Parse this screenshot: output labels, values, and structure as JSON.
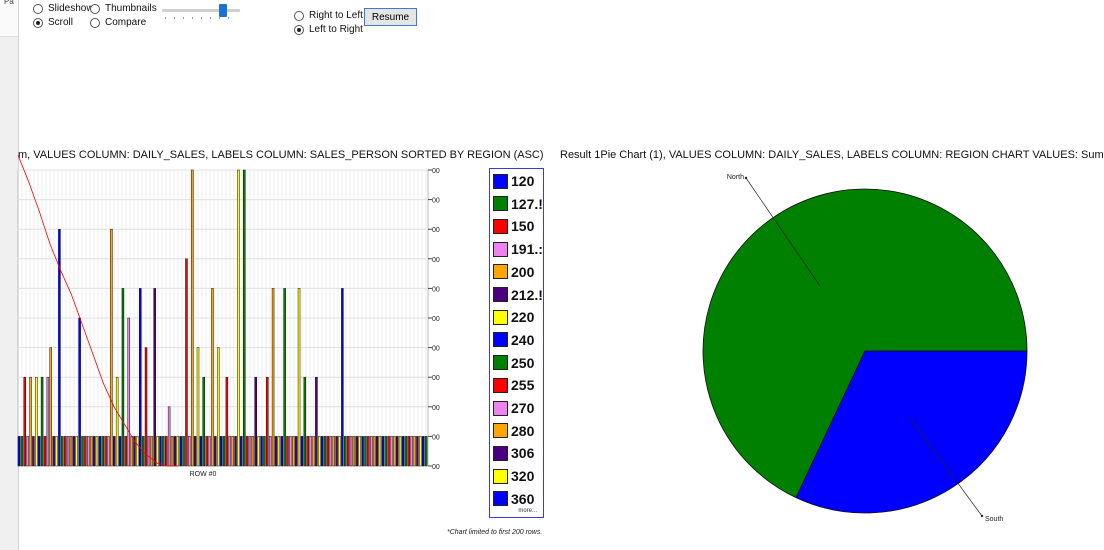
{
  "toolbar": {
    "edge_label": "Pa",
    "slideshow_label": "Slideshow",
    "thumbnails_label": "Thumbnails",
    "scroll_label": "Scroll",
    "compare_label": "Compare",
    "right_to_left_label": "Right to Left",
    "left_to_right_label": "Left to Right",
    "resume_label": "Resume",
    "selected_view": "Scroll",
    "selected_direction": "Left to Right"
  },
  "left_chart_title": "m, VALUES COLUMN: DAILY_SALES, LABELS COLUMN: SALES_PERSON SORTED BY REGION (ASC)",
  "right_chart_title": "Result 1Pie Chart (1), VALUES COLUMN: DAILY_SALES, LABELS COLUMN: REGION CHART VALUES: Sum",
  "legend_more": "more...",
  "footnote": "*Chart limited to first 200 rows.",
  "chart_data": [
    {
      "type": "bar",
      "xlabel": "ROW #0",
      "ylabel": "",
      "y_tick_labels": [
        "00",
        "00",
        "00",
        "00",
        "00",
        "00",
        "00",
        "00",
        "00",
        "00",
        "00"
      ],
      "grid": true,
      "legend_position": "right",
      "legend": [
        {
          "label": "120",
          "color": "#0000ff"
        },
        {
          "label": "127.!",
          "color": "#008000"
        },
        {
          "label": "150",
          "color": "#ff0000"
        },
        {
          "label": "191.:",
          "color": "#ee82ee"
        },
        {
          "label": "200",
          "color": "#ffa500"
        },
        {
          "label": "212.!",
          "color": "#4b0082"
        },
        {
          "label": "220",
          "color": "#ffff00"
        },
        {
          "label": "240",
          "color": "#0000ff"
        },
        {
          "label": "250",
          "color": "#008000"
        },
        {
          "label": "255",
          "color": "#ff0000"
        },
        {
          "label": "270",
          "color": "#ee82ee"
        },
        {
          "label": "280",
          "color": "#ffa500"
        },
        {
          "label": "306",
          "color": "#4b0082"
        },
        {
          "label": "320",
          "color": "#ffff00"
        },
        {
          "label": "360",
          "color": "#0000ff"
        }
      ],
      "palette": [
        "#0000ff",
        "#008000",
        "#ff0000",
        "#ee82ee",
        "#ffa500",
        "#4b0082",
        "#ffff00"
      ],
      "values": [
        1,
        1,
        3,
        1,
        3,
        1,
        3,
        1,
        3,
        1,
        3,
        4,
        1,
        1,
        8,
        1,
        1,
        1,
        1,
        1,
        1,
        5,
        1,
        1,
        1,
        1,
        1,
        1,
        1,
        1,
        1,
        1,
        8,
        1,
        3,
        1,
        6,
        1,
        5,
        1,
        1,
        1,
        6,
        1,
        4,
        1,
        1,
        6,
        1,
        1,
        1,
        1,
        2,
        1,
        1,
        1,
        1,
        1,
        7,
        1,
        10,
        1,
        4,
        1,
        3,
        1,
        1,
        6,
        1,
        4,
        1,
        1,
        3,
        1,
        1,
        1,
        10,
        1,
        10,
        1,
        1,
        1,
        3,
        1,
        1,
        1,
        3,
        1,
        6,
        1,
        1,
        1,
        6,
        1,
        1,
        1,
        1,
        6,
        1,
        3,
        1,
        1,
        1,
        3,
        1,
        1,
        1,
        1,
        1,
        1,
        1,
        1,
        6,
        1,
        1,
        1,
        1,
        1,
        1,
        1,
        1,
        1,
        1,
        1,
        1,
        1,
        1,
        1,
        1,
        1,
        1,
        1,
        1,
        1,
        1,
        1,
        1,
        1,
        1,
        1,
        1,
        1
      ],
      "ylim": [
        0,
        10
      ],
      "trend_line": {
        "color": "#ff0000",
        "values": [
          10.5,
          9.6,
          8.6,
          7.5,
          6.6,
          5.8,
          4.8,
          3.8,
          2.8,
          2.0,
          1.4,
          0.8,
          0.4,
          0.1,
          0.0,
          0.0
        ]
      }
    },
    {
      "type": "pie",
      "labels": [
        "North",
        "South"
      ],
      "values": [
        68,
        32
      ],
      "colors": [
        "#008000",
        "#0000ff"
      ]
    }
  ]
}
